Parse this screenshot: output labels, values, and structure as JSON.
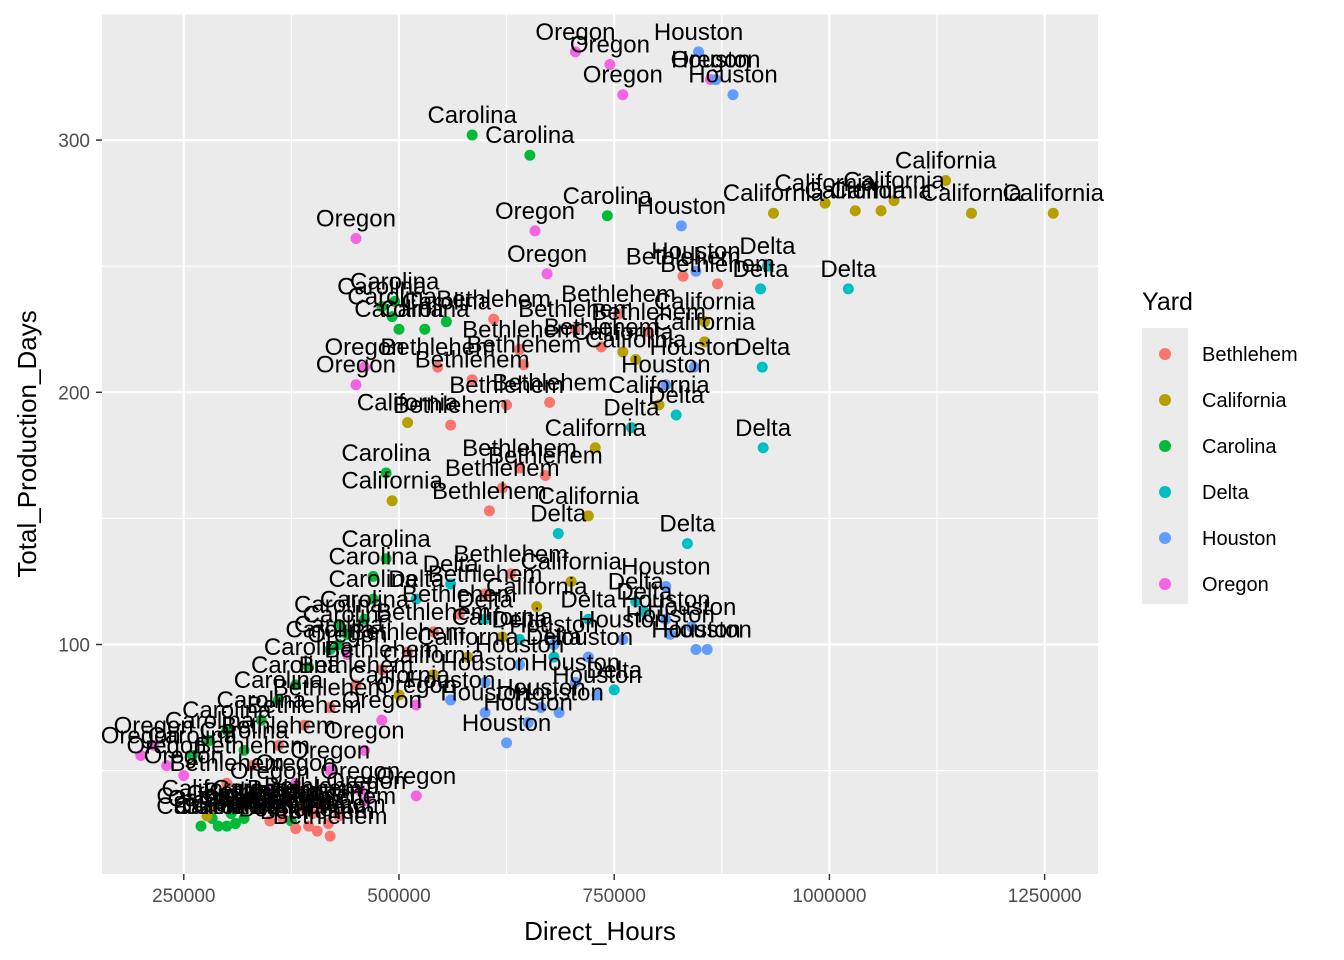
{
  "chart_data": {
    "type": "scatter",
    "title": "",
    "xlabel": "Direct_Hours",
    "ylabel": "Total_Production_Days",
    "xlim": [
      155000,
      1312000
    ],
    "ylim": [
      9,
      350
    ],
    "x_ticks": [
      250000,
      500000,
      750000,
      1000000,
      1250000
    ],
    "y_ticks": [
      100,
      200,
      300
    ],
    "grid": true,
    "legend": {
      "title": "Yard",
      "position": "right",
      "entries": [
        {
          "name": "Bethlehem",
          "color": "#F8766D"
        },
        {
          "name": "California",
          "color": "#B79F00"
        },
        {
          "name": "Carolina",
          "color": "#00BA38"
        },
        {
          "name": "Delta",
          "color": "#00BFC4"
        },
        {
          "name": "Houston",
          "color": "#619CFF"
        },
        {
          "name": "Oregon",
          "color": "#F564E3"
        }
      ]
    },
    "points": [
      {
        "x": 705000,
        "y": 335,
        "yard": "Oregon"
      },
      {
        "x": 745000,
        "y": 330,
        "yard": "Oregon"
      },
      {
        "x": 760000,
        "y": 318,
        "yard": "Oregon"
      },
      {
        "x": 848000,
        "y": 335,
        "yard": "Houston"
      },
      {
        "x": 862000,
        "y": 324,
        "yard": "Oregon"
      },
      {
        "x": 868000,
        "y": 324,
        "yard": "Houston"
      },
      {
        "x": 888000,
        "y": 318,
        "yard": "Houston"
      },
      {
        "x": 585000,
        "y": 302,
        "yard": "Carolina"
      },
      {
        "x": 652000,
        "y": 294,
        "yard": "Carolina"
      },
      {
        "x": 1135000,
        "y": 284,
        "yard": "California"
      },
      {
        "x": 1165000,
        "y": 271,
        "yard": "California"
      },
      {
        "x": 1260000,
        "y": 271,
        "yard": "California"
      },
      {
        "x": 995000,
        "y": 275,
        "yard": "California"
      },
      {
        "x": 1030000,
        "y": 272,
        "yard": "California"
      },
      {
        "x": 1060000,
        "y": 272,
        "yard": "California"
      },
      {
        "x": 1075000,
        "y": 276,
        "yard": "California"
      },
      {
        "x": 935000,
        "y": 271,
        "yard": "California"
      },
      {
        "x": 450000,
        "y": 261,
        "yard": "Oregon"
      },
      {
        "x": 742000,
        "y": 270,
        "yard": "Carolina"
      },
      {
        "x": 658000,
        "y": 264,
        "yard": "Oregon"
      },
      {
        "x": 828000,
        "y": 266,
        "yard": "Houston"
      },
      {
        "x": 672000,
        "y": 247,
        "yard": "Oregon"
      },
      {
        "x": 845000,
        "y": 248,
        "yard": "Houston"
      },
      {
        "x": 830000,
        "y": 246,
        "yard": "Bethlehem"
      },
      {
        "x": 870000,
        "y": 243,
        "yard": "Bethlehem"
      },
      {
        "x": 920000,
        "y": 241,
        "yard": "Delta"
      },
      {
        "x": 928000,
        "y": 250,
        "yard": "Delta"
      },
      {
        "x": 1022000,
        "y": 241,
        "yard": "Delta"
      },
      {
        "x": 855000,
        "y": 228,
        "yard": "California"
      },
      {
        "x": 755000,
        "y": 231,
        "yard": "Bethlehem"
      },
      {
        "x": 705000,
        "y": 225,
        "yard": "Bethlehem"
      },
      {
        "x": 790000,
        "y": 224,
        "yard": "Bethlehem"
      },
      {
        "x": 735000,
        "y": 218,
        "yard": "Bethlehem"
      },
      {
        "x": 775000,
        "y": 213,
        "yard": "California"
      },
      {
        "x": 760000,
        "y": 216,
        "yard": "California"
      },
      {
        "x": 855000,
        "y": 220,
        "yard": "California"
      },
      {
        "x": 922000,
        "y": 210,
        "yard": "Delta"
      },
      {
        "x": 843000,
        "y": 210,
        "yard": "Houston"
      },
      {
        "x": 810000,
        "y": 203,
        "yard": "Houston"
      },
      {
        "x": 802000,
        "y": 195,
        "yard": "California"
      },
      {
        "x": 822000,
        "y": 191,
        "yard": "Delta"
      },
      {
        "x": 923000,
        "y": 178,
        "yard": "Delta"
      },
      {
        "x": 770000,
        "y": 186,
        "yard": "Delta"
      },
      {
        "x": 728000,
        "y": 178,
        "yard": "California"
      },
      {
        "x": 480000,
        "y": 234,
        "yard": "Carolina"
      },
      {
        "x": 492000,
        "y": 230,
        "yard": "Carolina"
      },
      {
        "x": 500000,
        "y": 225,
        "yard": "Carolina"
      },
      {
        "x": 530000,
        "y": 225,
        "yard": "Carolina"
      },
      {
        "x": 555000,
        "y": 228,
        "yard": "Carolina"
      },
      {
        "x": 495000,
        "y": 236,
        "yard": "Carolina"
      },
      {
        "x": 610000,
        "y": 229,
        "yard": "Bethlehem"
      },
      {
        "x": 640000,
        "y": 217,
        "yard": "Bethlehem"
      },
      {
        "x": 645000,
        "y": 211,
        "yard": "Bethlehem"
      },
      {
        "x": 545000,
        "y": 210,
        "yard": "Bethlehem"
      },
      {
        "x": 585000,
        "y": 205,
        "yard": "Bethlehem"
      },
      {
        "x": 450000,
        "y": 203,
        "yard": "Oregon"
      },
      {
        "x": 460000,
        "y": 210,
        "yard": "Oregon"
      },
      {
        "x": 510000,
        "y": 188,
        "yard": "California"
      },
      {
        "x": 560000,
        "y": 187,
        "yard": "Bethlehem"
      },
      {
        "x": 625000,
        "y": 195,
        "yard": "Bethlehem"
      },
      {
        "x": 675000,
        "y": 196,
        "yard": "Bethlehem"
      },
      {
        "x": 640000,
        "y": 170,
        "yard": "Bethlehem"
      },
      {
        "x": 670000,
        "y": 167,
        "yard": "Bethlehem"
      },
      {
        "x": 620000,
        "y": 162,
        "yard": "Bethlehem"
      },
      {
        "x": 485000,
        "y": 168,
        "yard": "Carolina"
      },
      {
        "x": 492000,
        "y": 157,
        "yard": "California"
      },
      {
        "x": 605000,
        "y": 153,
        "yard": "Bethlehem"
      },
      {
        "x": 720000,
        "y": 151,
        "yard": "California"
      },
      {
        "x": 685000,
        "y": 144,
        "yard": "Delta"
      },
      {
        "x": 835000,
        "y": 140,
        "yard": "Delta"
      },
      {
        "x": 485000,
        "y": 134,
        "yard": "Carolina"
      },
      {
        "x": 470000,
        "y": 127,
        "yard": "Carolina"
      },
      {
        "x": 810000,
        "y": 123,
        "yard": "Houston"
      },
      {
        "x": 775000,
        "y": 117,
        "yard": "Delta"
      },
      {
        "x": 840000,
        "y": 107,
        "yard": "Houston"
      },
      {
        "x": 815000,
        "y": 104,
        "yard": "Houston"
      },
      {
        "x": 810000,
        "y": 110,
        "yard": "Houston"
      },
      {
        "x": 785000,
        "y": 113,
        "yard": "Delta"
      },
      {
        "x": 858000,
        "y": 98,
        "yard": "Houston"
      },
      {
        "x": 845000,
        "y": 98,
        "yard": "Houston"
      },
      {
        "x": 750000,
        "y": 82,
        "yard": "Delta"
      },
      {
        "x": 730000,
        "y": 80,
        "yard": "Houston"
      },
      {
        "x": 600000,
        "y": 73,
        "yard": "Houston"
      },
      {
        "x": 625000,
        "y": 61,
        "yard": "Houston"
      },
      {
        "x": 665000,
        "y": 75,
        "yard": "Houston"
      },
      {
        "x": 686000,
        "y": 73,
        "yard": "Houston"
      },
      {
        "x": 705000,
        "y": 85,
        "yard": "Houston"
      },
      {
        "x": 650000,
        "y": 69,
        "yard": "Houston"
      },
      {
        "x": 430000,
        "y": 100,
        "yard": "Carolina"
      },
      {
        "x": 430000,
        "y": 108,
        "yard": "Carolina"
      },
      {
        "x": 440000,
        "y": 96,
        "yard": "Oregon"
      },
      {
        "x": 462000,
        "y": 38,
        "yard": "Oregon"
      },
      {
        "x": 455000,
        "y": 42,
        "yard": "Oregon"
      },
      {
        "x": 520000,
        "y": 40,
        "yard": "Oregon"
      },
      {
        "x": 283000,
        "y": 31,
        "yard": "Carolina"
      },
      {
        "x": 270000,
        "y": 28,
        "yard": "Carolina"
      },
      {
        "x": 290000,
        "y": 28,
        "yard": "Carolina"
      },
      {
        "x": 300000,
        "y": 28,
        "yard": "Carolina"
      },
      {
        "x": 310000,
        "y": 29,
        "yard": "Carolina"
      },
      {
        "x": 320000,
        "y": 31,
        "yard": "Carolina"
      },
      {
        "x": 335000,
        "y": 35,
        "yard": "Carolina"
      },
      {
        "x": 305000,
        "y": 33,
        "yard": "Carolina"
      },
      {
        "x": 375000,
        "y": 30,
        "yard": "Carolina"
      },
      {
        "x": 277000,
        "y": 32,
        "yard": "California"
      },
      {
        "x": 283000,
        "y": 35,
        "yard": "California"
      },
      {
        "x": 350000,
        "y": 30,
        "yard": "Bethlehem"
      },
      {
        "x": 365000,
        "y": 31,
        "yard": "Bethlehem"
      },
      {
        "x": 380000,
        "y": 27,
        "yard": "Bethlehem"
      },
      {
        "x": 395000,
        "y": 28,
        "yard": "Bethlehem"
      },
      {
        "x": 405000,
        "y": 26,
        "yard": "Bethlehem"
      },
      {
        "x": 418000,
        "y": 29,
        "yard": "Bethlehem"
      },
      {
        "x": 420000,
        "y": 24,
        "yard": "Bethlehem"
      },
      {
        "x": 430000,
        "y": 32,
        "yard": "Bethlehem"
      },
      {
        "x": 400000,
        "y": 33,
        "yard": "Bethlehem"
      },
      {
        "x": 390000,
        "y": 35,
        "yard": "Bethlehem"
      },
      {
        "x": 410000,
        "y": 36,
        "yard": "Bethlehem"
      },
      {
        "x": 340000,
        "y": 34,
        "yard": "Bethlehem"
      },
      {
        "x": 200000,
        "y": 56,
        "yard": "Oregon"
      },
      {
        "x": 215000,
        "y": 60,
        "yard": "Oregon"
      },
      {
        "x": 230000,
        "y": 52,
        "yard": "Oregon"
      },
      {
        "x": 250000,
        "y": 48,
        "yard": "Oregon"
      },
      {
        "x": 260000,
        "y": 56,
        "yard": "Carolina"
      },
      {
        "x": 280000,
        "y": 62,
        "yard": "Carolina"
      },
      {
        "x": 300000,
        "y": 66,
        "yard": "Carolina"
      },
      {
        "x": 320000,
        "y": 58,
        "yard": "Carolina"
      },
      {
        "x": 340000,
        "y": 70,
        "yard": "Carolina"
      },
      {
        "x": 360000,
        "y": 78,
        "yard": "Carolina"
      },
      {
        "x": 380000,
        "y": 84,
        "yard": "Carolina"
      },
      {
        "x": 395000,
        "y": 91,
        "yard": "Carolina"
      },
      {
        "x": 420000,
        "y": 98,
        "yard": "Carolina"
      },
      {
        "x": 440000,
        "y": 104,
        "yard": "Carolina"
      },
      {
        "x": 460000,
        "y": 110,
        "yard": "Carolina"
      },
      {
        "x": 470000,
        "y": 118,
        "yard": "Carolina"
      },
      {
        "x": 300000,
        "y": 45,
        "yard": "Bethlehem"
      },
      {
        "x": 330000,
        "y": 52,
        "yard": "Bethlehem"
      },
      {
        "x": 360000,
        "y": 60,
        "yard": "Bethlehem"
      },
      {
        "x": 390000,
        "y": 68,
        "yard": "Bethlehem"
      },
      {
        "x": 420000,
        "y": 75,
        "yard": "Bethlehem"
      },
      {
        "x": 450000,
        "y": 84,
        "yard": "Bethlehem"
      },
      {
        "x": 480000,
        "y": 90,
        "yard": "Bethlehem"
      },
      {
        "x": 510000,
        "y": 97,
        "yard": "Bethlehem"
      },
      {
        "x": 540000,
        "y": 105,
        "yard": "Bethlehem"
      },
      {
        "x": 570000,
        "y": 112,
        "yard": "Bethlehem"
      },
      {
        "x": 600000,
        "y": 120,
        "yard": "Bethlehem"
      },
      {
        "x": 630000,
        "y": 128,
        "yard": "Bethlehem"
      },
      {
        "x": 520000,
        "y": 118,
        "yard": "Delta"
      },
      {
        "x": 560000,
        "y": 124,
        "yard": "Delta"
      },
      {
        "x": 600000,
        "y": 110,
        "yard": "Delta"
      },
      {
        "x": 640000,
        "y": 102,
        "yard": "Delta"
      },
      {
        "x": 680000,
        "y": 95,
        "yard": "Delta"
      },
      {
        "x": 720000,
        "y": 110,
        "yard": "Delta"
      },
      {
        "x": 500000,
        "y": 80,
        "yard": "California"
      },
      {
        "x": 540000,
        "y": 88,
        "yard": "California"
      },
      {
        "x": 580000,
        "y": 95,
        "yard": "California"
      },
      {
        "x": 620000,
        "y": 103,
        "yard": "California"
      },
      {
        "x": 660000,
        "y": 115,
        "yard": "California"
      },
      {
        "x": 700000,
        "y": 125,
        "yard": "California"
      },
      {
        "x": 560000,
        "y": 78,
        "yard": "Houston"
      },
      {
        "x": 600000,
        "y": 85,
        "yard": "Houston"
      },
      {
        "x": 640000,
        "y": 92,
        "yard": "Houston"
      },
      {
        "x": 680000,
        "y": 100,
        "yard": "Houston"
      },
      {
        "x": 720000,
        "y": 95,
        "yard": "Houston"
      },
      {
        "x": 760000,
        "y": 102,
        "yard": "Houston"
      },
      {
        "x": 480000,
        "y": 70,
        "yard": "Oregon"
      },
      {
        "x": 520000,
        "y": 76,
        "yard": "Oregon"
      },
      {
        "x": 460000,
        "y": 58,
        "yard": "Oregon"
      },
      {
        "x": 420000,
        "y": 50,
        "yard": "Oregon"
      },
      {
        "x": 380000,
        "y": 45,
        "yard": "Oregon"
      },
      {
        "x": 350000,
        "y": 42,
        "yard": "Oregon"
      }
    ]
  }
}
